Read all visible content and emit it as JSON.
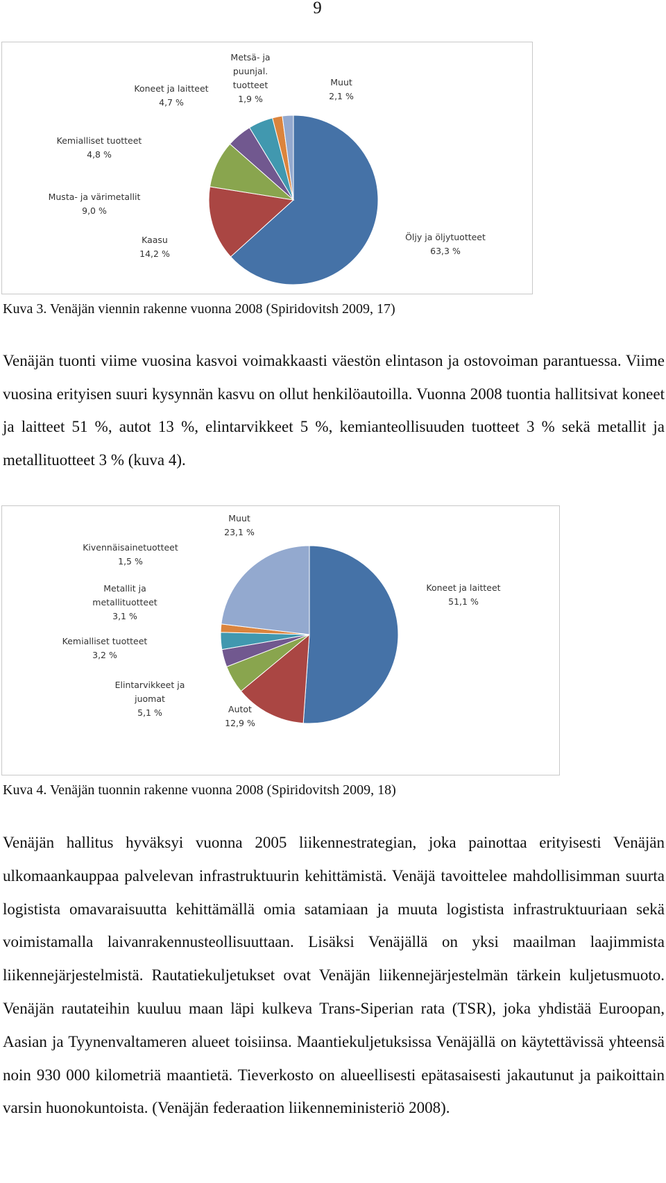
{
  "page_number": "9",
  "chart_data": [
    {
      "type": "pie",
      "categories": [
        "Öljy ja öljytuotteet",
        "Kaasu",
        "Musta- ja värimetallit",
        "Kemialliset tuotteet",
        "Koneet ja laitteet",
        "Metsä- ja puunjal. tuotteet",
        "Muut"
      ],
      "values": [
        63.3,
        14.2,
        9.0,
        4.8,
        4.7,
        1.9,
        2.1
      ],
      "value_labels": [
        "63,3 %",
        "14,2 %",
        "9,0 %",
        "4,8 %",
        "4,7 %",
        "1,9 %",
        "2,1 %"
      ],
      "colors": [
        "#4572a7",
        "#aa4643",
        "#89a54e",
        "#71588f",
        "#4198af",
        "#db843d",
        "#93a9cf"
      ]
    },
    {
      "type": "pie",
      "categories": [
        "Koneet ja laitteet",
        "Autot",
        "Elintarvikkeet ja juomat",
        "Kemialliset tuotteet",
        "Metallit ja metallituotteet",
        "Kivennäisainetuotteet",
        "Muut"
      ],
      "values": [
        51.1,
        12.9,
        5.1,
        3.2,
        3.1,
        1.5,
        23.1
      ],
      "value_labels": [
        "51,1 %",
        "12,9 %",
        "5,1 %",
        "3,2 %",
        "3,1 %",
        "1,5 %",
        "23,1 %"
      ],
      "colors": [
        "#4572a7",
        "#aa4643",
        "#89a54e",
        "#71588f",
        "#4198af",
        "#db843d",
        "#93a9cf"
      ]
    }
  ],
  "captions": [
    "Kuva 3. Venäjän viennin rakenne vuonna 2008 (Spiridovitsh 2009, 17)",
    "Kuva 4. Venäjän tuonnin rakenne vuonna 2008 (Spiridovitsh 2009, 18)"
  ],
  "paragraphs": [
    "Venäjän tuonti viime vuosina kasvoi voimakkaasti väestön elintason ja ostovoiman parantuessa. Viime vuosina erityisen suuri kysynnän kasvu on ollut henkilöautoilla. Vuonna 2008 tuontia hallitsivat koneet ja laitteet 51 %, autot 13 %, elintarvikkeet 5 %, kemianteollisuuden tuotteet 3 % sekä metallit ja metallituotteet 3 % (kuva 4).",
    "Venäjän hallitus hyväksyi vuonna 2005 liikennestrategian, joka painottaa erityisesti Venäjän ulkomaankauppaa palvelevan infrastruktuurin kehittämistä. Venäjä tavoittelee mahdollisimman suurta logistista omavaraisuutta kehittämällä omia satamiaan ja muuta logistista infrastruktuuriaan sekä voimistamalla laivanrakennusteollisuuttaan. Lisäksi Venäjällä on yksi maailman laajimmista liikennejärjestelmistä. Rautatiekuljetukset ovat Venäjän liikennejärjestelmän tärkein kuljetusmuoto. Venäjän rautateihin kuuluu maan läpi kulkeva Trans-Siperian rata (TSR), joka yhdistää Euroopan, Aasian ja Tyynenvaltameren alueet toisiinsa. Maantiekuljetuksissa Venäjällä on käytettävissä yhteensä noin 930 000 kilometriä maantietä. Tieverkosto on alueellisesti epätasaisesti jakautunut ja paikoittain varsin huonokuntoista. (Venäjän federaation liikenneministeriö 2008)."
  ]
}
